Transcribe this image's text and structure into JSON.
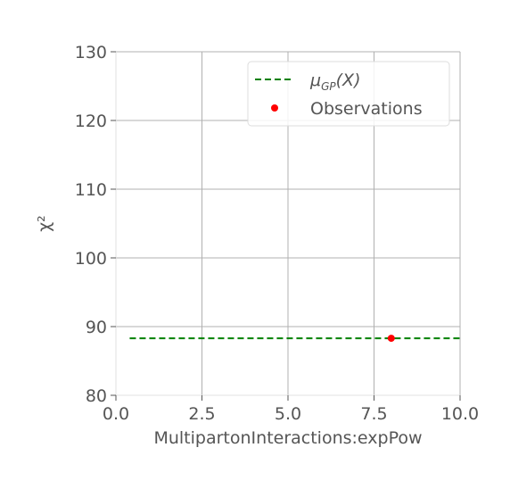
{
  "chart_data": {
    "type": "line",
    "xlabel": "MultipartonInteractions:expPow",
    "ylabel": "$\\chi^2$",
    "xlim": [
      0.0,
      10.0
    ],
    "ylim": [
      80,
      130
    ],
    "xticks": [
      "0.0",
      "2.5",
      "5.0",
      "7.5",
      "10.0"
    ],
    "yticks": [
      "80",
      "90",
      "100",
      "110",
      "120",
      "130"
    ],
    "grid": true,
    "legend_position": "top-right",
    "series": [
      {
        "name": "$\\mu_{GP}(X)$",
        "style": "dashed",
        "color": "#008000",
        "x": [
          0.4,
          10.0
        ],
        "y": [
          88.3,
          88.3
        ]
      },
      {
        "name": "Observations",
        "style": "scatter",
        "color": "#ff0000",
        "x": [
          8.0
        ],
        "y": [
          88.3
        ]
      }
    ]
  }
}
